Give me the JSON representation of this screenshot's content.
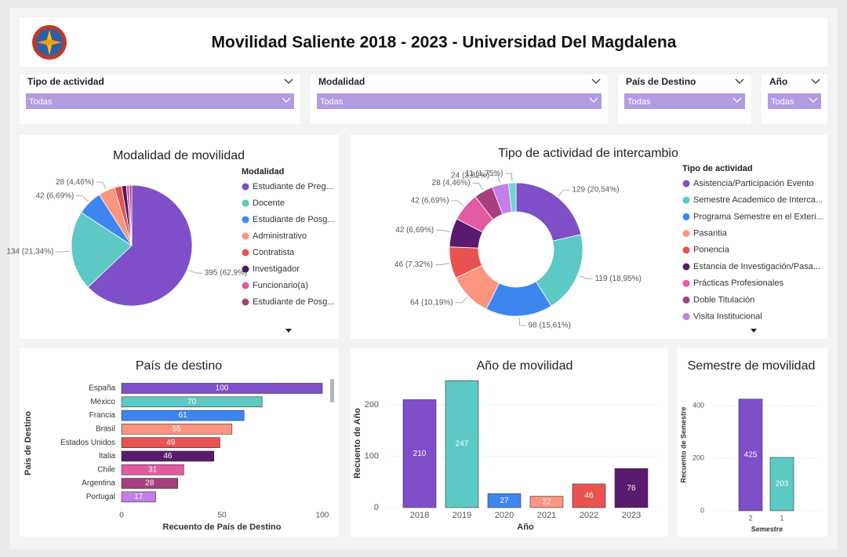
{
  "header": {
    "title": "Movilidad Saliente 2018 - 2023 - Universidad Del Magdalena"
  },
  "filters": [
    {
      "label": "Tipo de actividad",
      "value": "Todas"
    },
    {
      "label": "Modalidad",
      "value": "Todas"
    },
    {
      "label": "País de Destino",
      "value": "Todas"
    },
    {
      "label": "Año",
      "value": "Todas"
    }
  ],
  "chart_data": [
    {
      "type": "pie",
      "title": "Modalidad de movilidad",
      "legend_title": "Modalidad",
      "categories": [
        "Estudiante de Preg...",
        "Docente",
        "Estudiante de Posg...",
        "Administrativo",
        "Contratista",
        "Investigador",
        "Funcionario(a)",
        "Estudiante de Posg..."
      ],
      "values": [
        395,
        134,
        42,
        28,
        12,
        8,
        5,
        4
      ],
      "value_labels": [
        "395 (62,9%)",
        "134 (21,34%)",
        "42 (6,69%)",
        "28 (4,46%)",
        null,
        null,
        null,
        null
      ],
      "colors": [
        "#7f4fc9",
        "#5cc9c4",
        "#3d86f0",
        "#fb957f",
        "#e8534f",
        "#4b1c66",
        "#e25ba0",
        "#a73f7e"
      ]
    },
    {
      "type": "donut",
      "title": "Tipo de actividad de intercambio",
      "legend_title": "Tipo de actividad",
      "categories": [
        "Asistencia/Participación Evento",
        "Semestre Academico de Interca...",
        "Programa Semestre en el Exteri...",
        "Pasantia",
        "Ponencia",
        "Estancia de Investigación/Pasa...",
        "Prácticas Profesionales",
        "Doble Titulación",
        "Visita Institucional",
        null
      ],
      "values": [
        129,
        119,
        98,
        64,
        46,
        42,
        42,
        28,
        24,
        11
      ],
      "value_labels": [
        "129 (20,54%)",
        "119 (18,95%)",
        "98 (15,61%)",
        "64 (10,19%)",
        "46 (7,32%)",
        "42 (6,69%)",
        "42 (6,69%)",
        "28 (4,46%)",
        "24 (3,82%)",
        "11 (1,75%)"
      ],
      "colors": [
        "#7f4fc9",
        "#5cc9c4",
        "#3d86f0",
        "#fb957f",
        "#e8534f",
        "#5a1a6e",
        "#e25ba0",
        "#a73f7e",
        "#c47ee8",
        "#6fd6cf"
      ]
    },
    {
      "type": "bar",
      "horizontal": true,
      "title": "País de destino",
      "x_label": "Recuento de País de Destino",
      "y_label": "País de Destino",
      "categories": [
        "España",
        "México",
        "Francia",
        "Brasil",
        "Estados Unidos",
        "Italia",
        "Chile",
        "Argentina",
        "Portugal"
      ],
      "values": [
        100,
        70,
        61,
        55,
        49,
        46,
        31,
        28,
        17
      ],
      "colors": [
        "#7f4fc9",
        "#5cc9c4",
        "#3d86f0",
        "#fb957f",
        "#e8534f",
        "#5a1a6e",
        "#e25ba0",
        "#a73f7e",
        "#c47ee8"
      ],
      "xlim": [
        0,
        100
      ],
      "xticks": [
        0,
        50,
        100
      ]
    },
    {
      "type": "bar",
      "horizontal": false,
      "title": "Año de movilidad",
      "x_label": "Año",
      "y_label": "Recuento de Año",
      "categories": [
        "2018",
        "2019",
        "2020",
        "2021",
        "2022",
        "2023"
      ],
      "values": [
        210,
        247,
        27,
        22,
        46,
        76
      ],
      "colors": [
        "#7f4fc9",
        "#5cc9c4",
        "#3d86f0",
        "#fb957f",
        "#e8534f",
        "#5a1a6e"
      ],
      "ylim": [
        0,
        260
      ],
      "yticks": [
        0,
        100,
        200
      ],
      "grid": true
    },
    {
      "type": "bar",
      "horizontal": false,
      "title": "Semestre de movilidad",
      "x_label": "Semestre",
      "y_label": "Recuento de Semestre",
      "categories": [
        "2",
        "1"
      ],
      "values": [
        425,
        203
      ],
      "colors": [
        "#7f4fc9",
        "#5cc9c4"
      ],
      "ylim": [
        0,
        460
      ],
      "yticks": [
        0,
        200,
        400
      ],
      "grid": true
    }
  ]
}
